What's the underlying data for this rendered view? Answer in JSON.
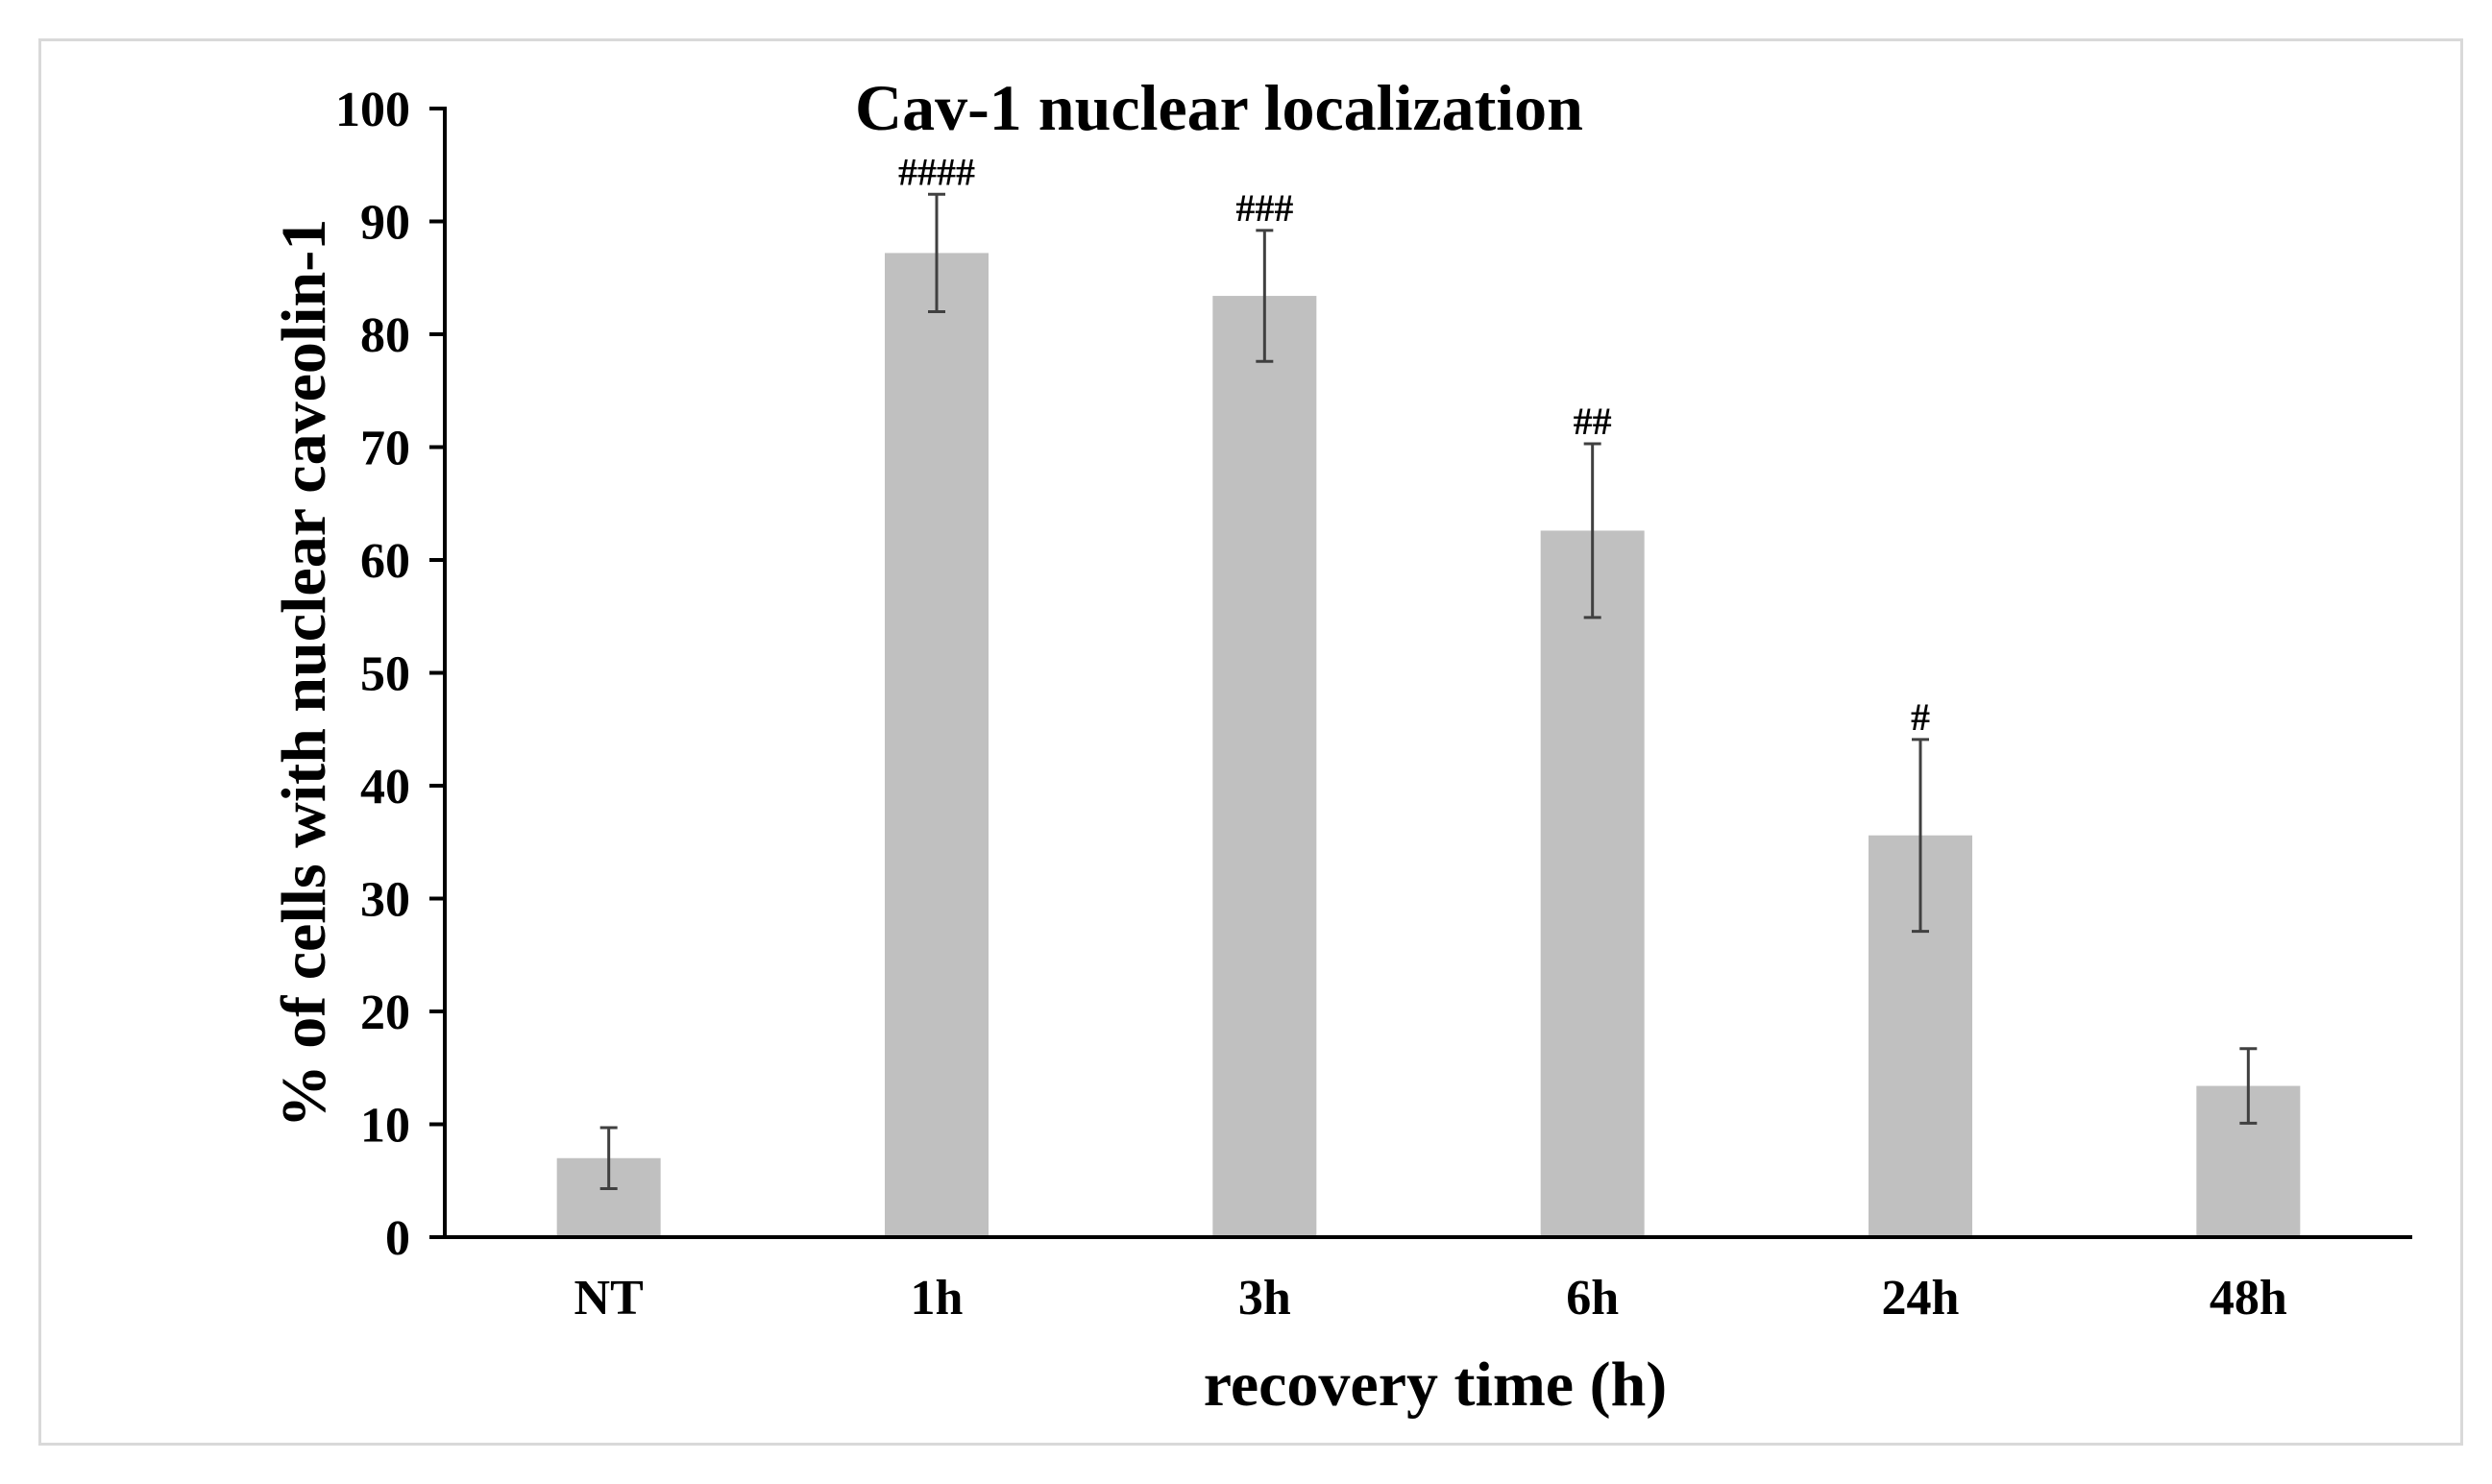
{
  "chart_data": {
    "type": "bar",
    "title": "Cav-1 nuclear localization",
    "xlabel": "recovery time (h)",
    "ylabel": "% of cells with nuclear caveolin-1",
    "ylim": [
      0,
      100
    ],
    "yticks": [
      0,
      10,
      20,
      30,
      40,
      50,
      60,
      70,
      80,
      90,
      100
    ],
    "categories": [
      "NT",
      "1h",
      "3h",
      "6h",
      "24h",
      "48h"
    ],
    "values": [
      7,
      87.2,
      83.4,
      62.6,
      35.6,
      13.4
    ],
    "errors": [
      2.7,
      5.2,
      5.8,
      7.7,
      8.5,
      3.3
    ],
    "annotations": [
      "",
      "####",
      "###",
      "##",
      "#",
      ""
    ],
    "colors": {
      "bar": "#c0c0c0",
      "axis": "#000000",
      "error_bar": "#404040",
      "frame": "#d9d9d9"
    }
  }
}
